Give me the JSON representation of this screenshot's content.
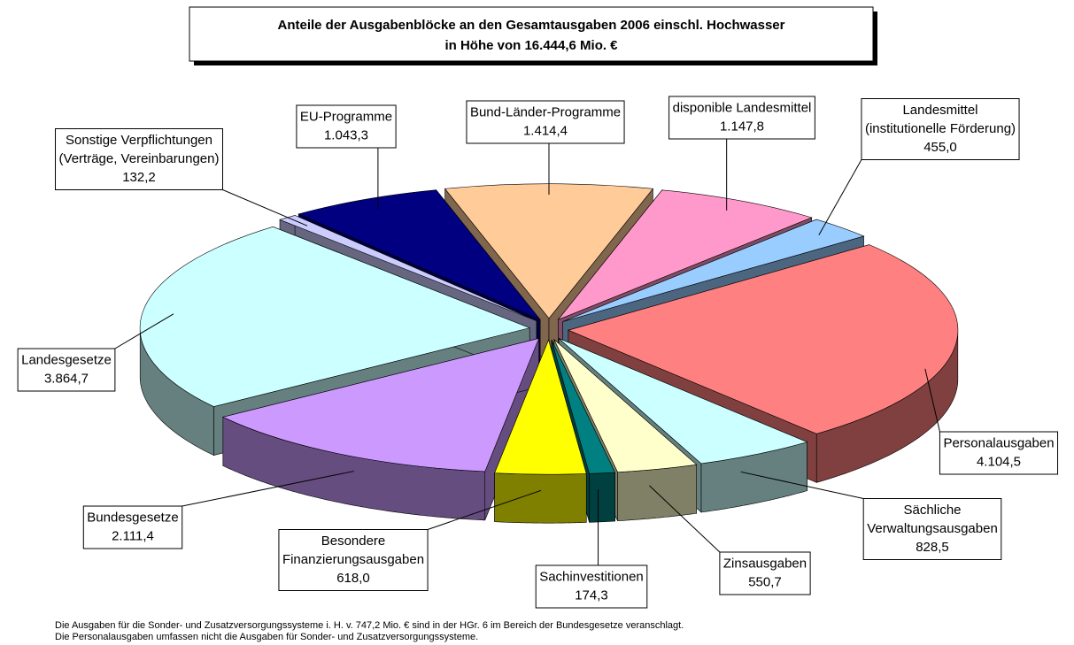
{
  "chart_data": {
    "type": "pie3d",
    "title": [
      "Anteile der Ausgabenblöcke an den Gesamtausgaben 2006 einschl. Hochwasser",
      "in Höhe von 16.444,6 Mio. €"
    ],
    "categories": [
      [
        "Bund-Länder-Programme"
      ],
      [
        "disponible Landesmittel"
      ],
      [
        "Landesmittel",
        "(institutionelle Förderung)"
      ],
      [
        "Personalausgaben"
      ],
      [
        "Sächliche",
        "Verwaltungsausgaben"
      ],
      [
        "Zinsausgaben"
      ],
      [
        "Sachinvestitionen"
      ],
      [
        "Besondere",
        "Finanzierungsausgaben"
      ],
      [
        "Bundesgesetze"
      ],
      [
        "Landesgesetze"
      ],
      [
        "Sonstige Verpflichtungen",
        "(Verträge, Vereinbarungen)"
      ],
      [
        "EU-Programme"
      ]
    ],
    "values": [
      1414.4,
      1147.8,
      455.0,
      4104.5,
      828.5,
      550.7,
      174.3,
      618.0,
      2111.4,
      3864.7,
      132.2,
      1043.3
    ],
    "value_labels": [
      "1.414,4",
      "1.147,8",
      "455,0",
      "4.104,5",
      "828,5",
      "550,7",
      "174,3",
      "618,0",
      "2.111,4",
      "3.864,7",
      "132,2",
      "1.043,3"
    ],
    "colors": [
      "#FFCC99",
      "#FF99CC",
      "#99CCFF",
      "#FF8080",
      "#CCFFFF",
      "#FFFFCC",
      "#008080",
      "#FFFF00",
      "#CC99FF",
      "#CCFFFF",
      "#CCCCFF",
      "#000080"
    ],
    "notes": [
      "Die Ausgaben für die Sonder- und Zusatzversorgungssysteme i. H. v. 747,2 Mio. € sind in der HGr. 6 im Bereich der Bundesgesetze veranschlagt.",
      "Die Personalausgaben umfassen nicht die Ausgaben für Sonder- und Zusatzversorgungssysteme."
    ]
  }
}
